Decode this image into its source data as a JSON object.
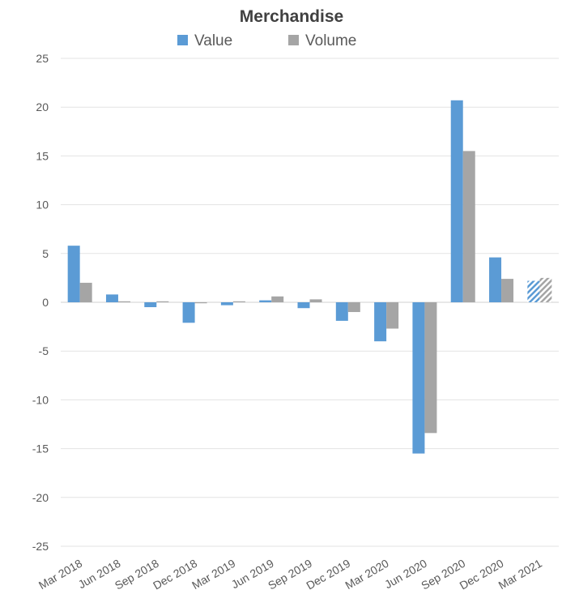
{
  "chart_data": {
    "type": "bar",
    "title": "Merchandise",
    "xlabel": "",
    "ylabel": "",
    "categories": [
      "Mar 2018",
      "Jun 2018",
      "Sep 2018",
      "Dec 2018",
      "Mar 2019",
      "Jun 2019",
      "Sep 2019",
      "Dec 2019",
      "Mar 2020",
      "Jun 2020",
      "Sep 2020",
      "Dec 2020",
      "Mar 2021"
    ],
    "series": [
      {
        "name": "Value",
        "color": "#5b9bd5",
        "values": [
          5.8,
          0.8,
          -0.5,
          -2.1,
          -0.3,
          0.2,
          -0.6,
          -1.9,
          -4.0,
          -15.5,
          20.7,
          4.6,
          2.2
        ]
      },
      {
        "name": "Volume",
        "color": "#a5a5a5",
        "values": [
          2.0,
          0.1,
          0.1,
          -0.1,
          0.1,
          0.6,
          0.3,
          -1.0,
          -2.7,
          -13.4,
          15.5,
          2.4,
          2.5
        ]
      }
    ],
    "hatched_categories": [
      "Mar 2021"
    ],
    "ylim": [
      -25,
      25
    ],
    "yticks": [
      25,
      20,
      15,
      10,
      5,
      0,
      -5,
      -10,
      -15,
      -20,
      -25
    ],
    "grid": true,
    "legend_position": "top"
  }
}
